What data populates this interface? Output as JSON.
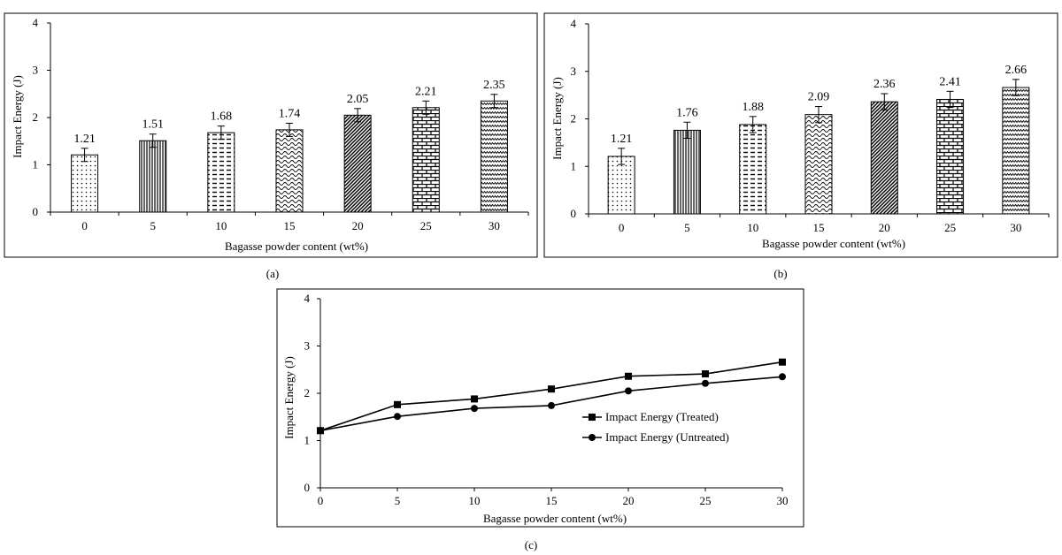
{
  "chart_data": [
    {
      "id": "a",
      "type": "bar",
      "panel_label": "(a)",
      "xlabel": "Bagasse powder content (wt%)",
      "ylabel": "Impact Energy (J)",
      "categories": [
        "0",
        "5",
        "10",
        "15",
        "20",
        "25",
        "30"
      ],
      "values": [
        1.21,
        1.51,
        1.68,
        1.74,
        2.05,
        2.21,
        2.35
      ],
      "value_labels": [
        "1.21",
        "1.51",
        "1.68",
        "1.74",
        "2.05",
        "2.21",
        "2.35"
      ],
      "error": [
        0.14,
        0.14,
        0.14,
        0.14,
        0.14,
        0.14,
        0.14
      ],
      "patterns": [
        "dots",
        "vertical-lines",
        "dashes",
        "waves",
        "diagonal",
        "bricks",
        "zigzag"
      ],
      "yticks": [
        "0",
        "1",
        "2",
        "3",
        "4"
      ],
      "ylim": [
        0,
        4
      ],
      "grid": false
    },
    {
      "id": "b",
      "type": "bar",
      "panel_label": "(b)",
      "xlabel": "Bagasse powder content (wt%)",
      "ylabel": "Impact Energy (J)",
      "categories": [
        "0",
        "5",
        "10",
        "15",
        "20",
        "25",
        "30"
      ],
      "values": [
        1.21,
        1.76,
        1.88,
        2.09,
        2.36,
        2.41,
        2.66
      ],
      "value_labels": [
        "1.21",
        "1.76",
        "1.88",
        "2.09",
        "2.36",
        "2.41",
        "2.66"
      ],
      "error": [
        0.17,
        0.17,
        0.17,
        0.17,
        0.17,
        0.17,
        0.17
      ],
      "patterns": [
        "dots",
        "vertical-lines",
        "dashes",
        "waves",
        "diagonal",
        "bricks",
        "zigzag"
      ],
      "yticks": [
        "0",
        "1",
        "2",
        "3",
        "4"
      ],
      "ylim": [
        0,
        4
      ],
      "grid": false
    },
    {
      "id": "c",
      "type": "line",
      "panel_label": "(c)",
      "xlabel": "Bagasse powder content (wt%)",
      "ylabel": "Impact Energy (J)",
      "x": [
        0,
        5,
        10,
        15,
        20,
        25,
        30
      ],
      "xticks": [
        "0",
        "5",
        "10",
        "15",
        "20",
        "25",
        "30"
      ],
      "yticks": [
        "0",
        "1",
        "2",
        "3",
        "4"
      ],
      "xlim": [
        0,
        30
      ],
      "ylim": [
        0,
        4
      ],
      "legend_position": "bottom-right",
      "grid": false,
      "series": [
        {
          "name": "Impact Energy (Treated)",
          "marker": "square",
          "values": [
            1.21,
            1.76,
            1.88,
            2.09,
            2.36,
            2.41,
            2.66
          ]
        },
        {
          "name": "Impact Energy (Untreated)",
          "marker": "circle",
          "values": [
            1.21,
            1.51,
            1.68,
            1.74,
            2.05,
            2.21,
            2.35
          ]
        }
      ]
    }
  ]
}
